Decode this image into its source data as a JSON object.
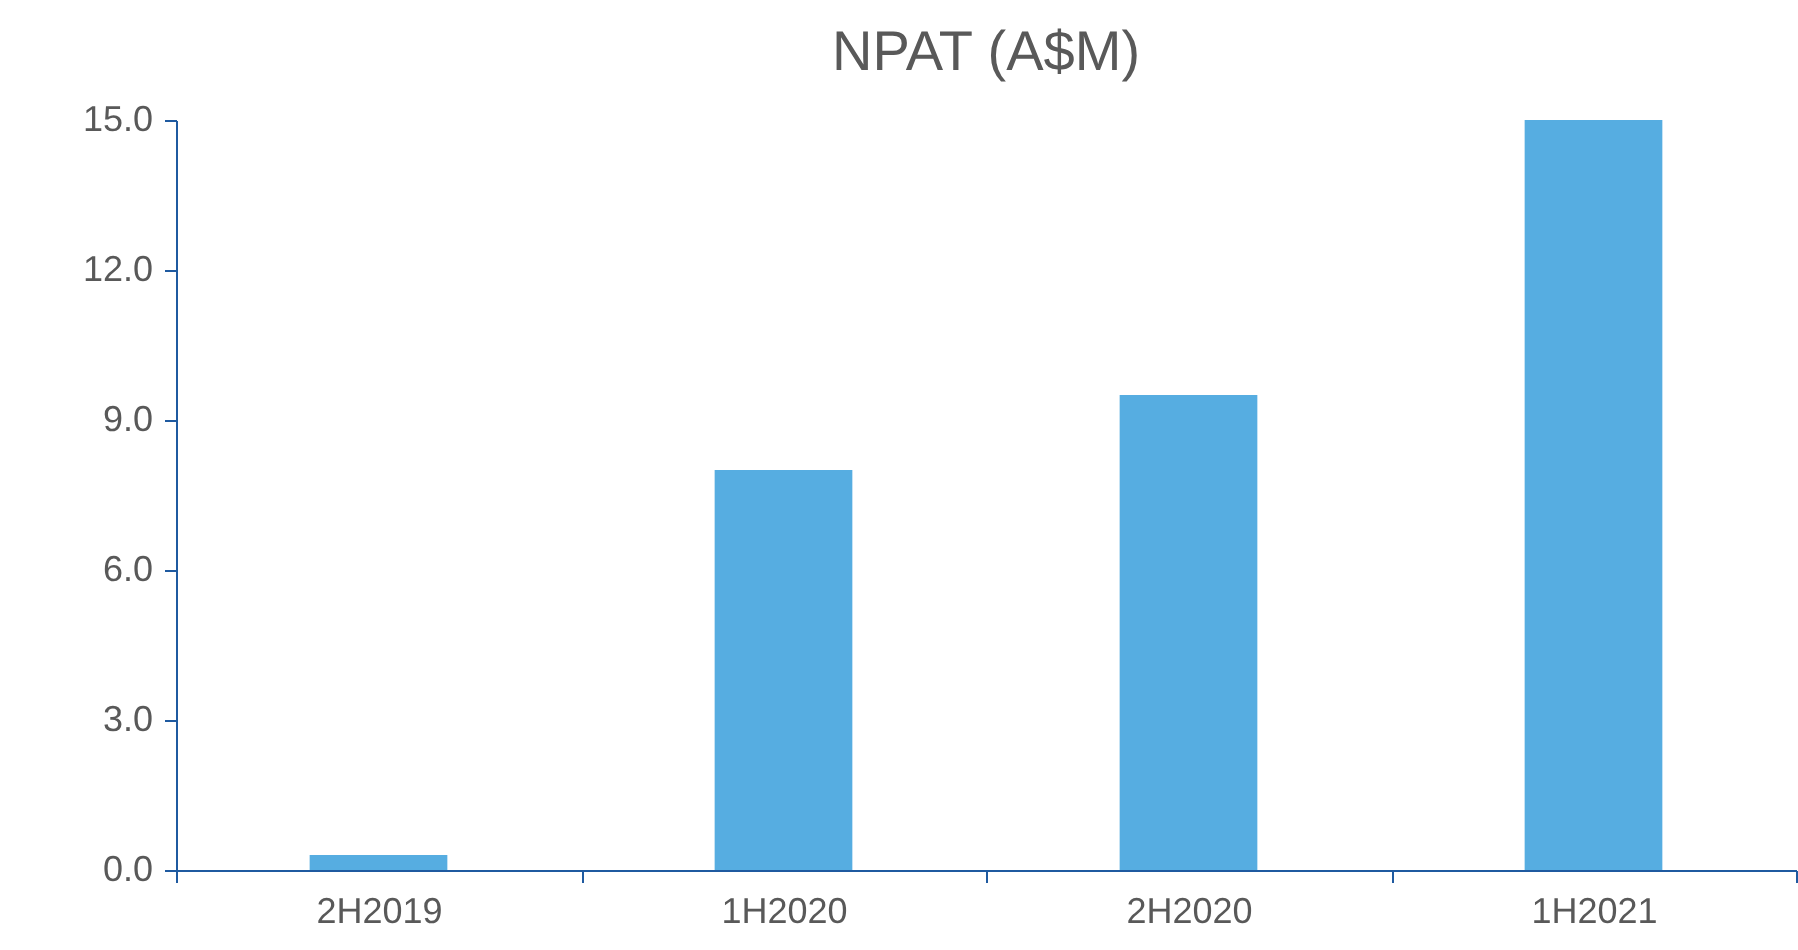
{
  "chart_data": {
    "type": "bar",
    "title": "NPAT (A$M)",
    "categories": [
      "2H2019",
      "1H2020",
      "2H2020",
      "1H2021"
    ],
    "values": [
      0.3,
      8.0,
      9.5,
      15.0
    ],
    "color": "#56ade1",
    "ylim": [
      0,
      15
    ],
    "yticks": [
      {
        "value": 0,
        "label": "0.0"
      },
      {
        "value": 3,
        "label": "3.0"
      },
      {
        "value": 6,
        "label": "6.0"
      },
      {
        "value": 9,
        "label": "9.0"
      },
      {
        "value": 12,
        "label": "12.0"
      },
      {
        "value": 15,
        "label": "15.0"
      }
    ],
    "grid": false
  }
}
